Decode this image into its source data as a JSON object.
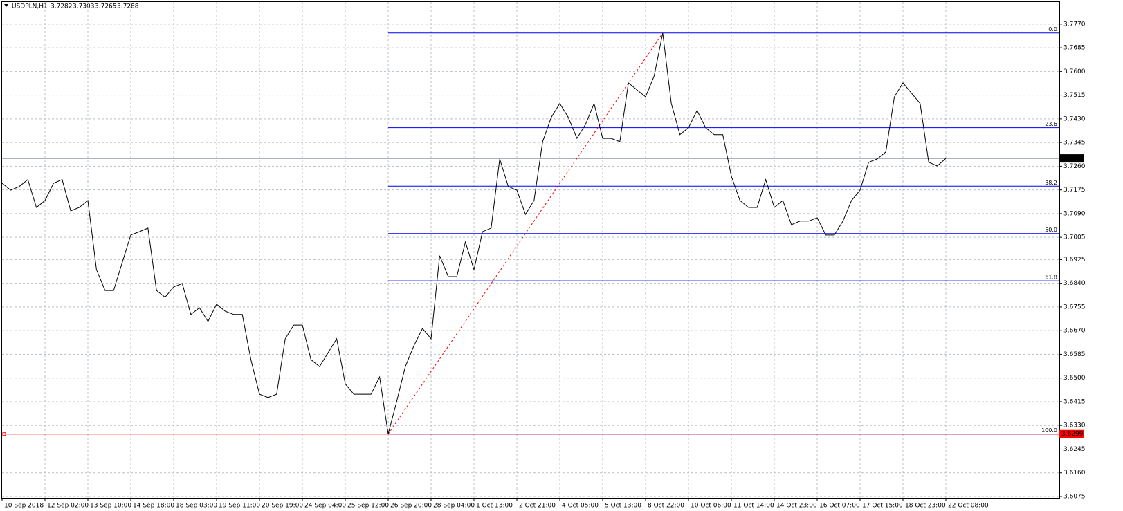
{
  "chart_data": {
    "type": "line",
    "symbol": "USDPLN,H1",
    "ohlc": {
      "open": 3.7282,
      "high": 3.7303,
      "low": 3.7265,
      "close": 3.7288
    },
    "color": "#000000",
    "grid": true,
    "ylim": [
      3.607,
      3.7849
    ],
    "yticks": [
      {
        "value": 3.777,
        "label": "3.7770"
      },
      3.7685,
      {
        "value": 3.76,
        "label": "3.7600"
      },
      3.7515,
      {
        "value": 3.743,
        "label": "3.7430"
      },
      3.7345,
      {
        "value": 3.726,
        "label": "3.7260"
      },
      3.7175,
      {
        "value": 3.709,
        "label": "3.7090"
      },
      3.7005,
      3.6925,
      {
        "value": 3.684,
        "label": "3.6840"
      },
      3.6755,
      {
        "value": 3.667,
        "label": "3.6670"
      },
      3.6585,
      {
        "value": 3.65,
        "label": "3.6500"
      },
      3.6415,
      {
        "value": 3.633,
        "label": "3.6330"
      },
      3.6245,
      {
        "value": 3.616,
        "label": "3.6160"
      },
      3.6075
    ],
    "categories": [
      "10 Sep 2018",
      null,
      null,
      null,
      null,
      "12 Sep 02:00",
      null,
      null,
      null,
      null,
      "13 Sep 10:00",
      null,
      null,
      null,
      null,
      "14 Sep 18:00",
      null,
      null,
      null,
      null,
      "18 Sep 03:00",
      null,
      null,
      null,
      null,
      "19 Sep 11:00",
      null,
      null,
      null,
      null,
      "20 Sep 19:00",
      null,
      null,
      null,
      null,
      "24 Sep 04:00",
      null,
      null,
      null,
      null,
      "25 Sep 12:00",
      null,
      null,
      null,
      null,
      "26 Sep 20:00",
      null,
      null,
      null,
      null,
      "28 Sep 04:00",
      null,
      null,
      null,
      null,
      "1 Oct 13:00",
      null,
      null,
      null,
      null,
      "2 Oct 21:00",
      null,
      null,
      null,
      null,
      "4 Oct 05:00",
      null,
      null,
      null,
      null,
      "5 Oct 13:00",
      null,
      null,
      null,
      null,
      "8 Oct 22:00",
      null,
      null,
      null,
      null,
      "10 Oct 06:00",
      null,
      null,
      null,
      null,
      "11 Oct 14:00",
      null,
      null,
      null,
      null,
      "14 Oct 23:00",
      null,
      null,
      null,
      null,
      "16 Oct 07:00",
      null,
      null,
      null,
      null,
      "17 Oct 15:00",
      null,
      null,
      null,
      null,
      "18 Oct 23:00",
      null,
      null,
      null,
      null,
      "22 Oct 08:00"
    ],
    "values": [
      3.7199,
      3.7174,
      3.7187,
      3.7212,
      3.7112,
      3.7137,
      3.7199,
      3.7212,
      3.71,
      3.7112,
      3.7137,
      3.6889,
      3.6814,
      3.6814,
      3.6914,
      3.7013,
      3.7025,
      3.7038,
      3.6814,
      3.679,
      3.6827,
      3.6839,
      3.6728,
      3.6752,
      3.6703,
      3.6765,
      3.674,
      3.6728,
      3.6728,
      3.6566,
      3.6442,
      3.643,
      3.6442,
      3.6641,
      3.669,
      3.669,
      3.6566,
      3.6541,
      3.6591,
      3.6641,
      3.6479,
      3.6442,
      3.6442,
      3.6442,
      3.6504,
      3.6299,
      3.6417,
      3.6541,
      3.6616,
      3.6678,
      3.6641,
      3.6939,
      3.6864,
      3.6864,
      3.6988,
      3.6889,
      3.7025,
      3.7038,
      3.7286,
      3.7187,
      3.7174,
      3.7087,
      3.7137,
      3.7348,
      3.7435,
      3.7485,
      3.7435,
      3.736,
      3.741,
      3.7485,
      3.736,
      3.736,
      3.7348,
      3.7559,
      3.7534,
      3.7509,
      3.7584,
      3.7738,
      3.7485,
      3.7373,
      3.7398,
      3.746,
      3.7398,
      3.7373,
      3.7373,
      3.7224,
      3.7137,
      3.7112,
      3.7112,
      3.7212,
      3.7112,
      3.7137,
      3.705,
      3.7063,
      3.7063,
      3.7075,
      3.7013,
      3.7013,
      3.7063,
      3.7137,
      3.7174,
      3.7274,
      3.7286,
      3.7311,
      3.7509,
      3.7559,
      3.7522,
      3.7485,
      3.7274,
      3.7261,
      3.7288
    ],
    "fibo": {
      "high": 3.7738,
      "low": 3.6299,
      "color": "#0000ff",
      "levels": [
        {
          "value": 0,
          "label": "0.0"
        },
        23.6,
        38.2,
        {
          "value": 50,
          "label": "50.0"
        },
        61.8,
        {
          "value": 100,
          "label": "100.0"
        }
      ]
    }
  }
}
